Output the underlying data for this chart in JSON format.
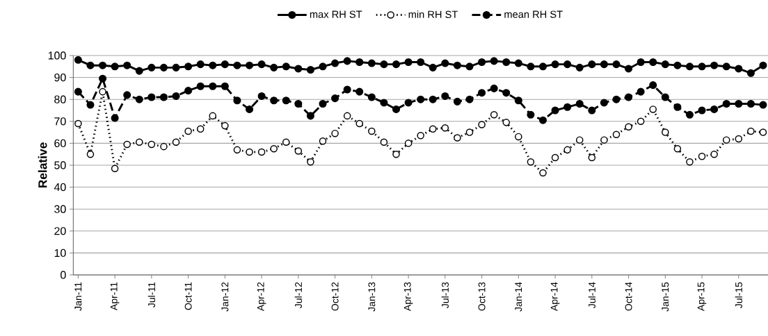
{
  "chart_data": {
    "type": "line",
    "ylabel": "Relative",
    "categories": [
      "Jan-11",
      null,
      null,
      "Apr-11",
      null,
      null,
      "Jul-11",
      null,
      null,
      "Oct-11",
      null,
      null,
      "Jan-12",
      null,
      null,
      "Apr-12",
      null,
      null,
      "Jul-12",
      null,
      null,
      "Oct-12",
      null,
      null,
      "Jan-13",
      null,
      null,
      "Apr-13",
      null,
      null,
      "Jul-13",
      null,
      null,
      "Oct-13",
      null,
      null,
      "Jan-14",
      null,
      null,
      "Apr-14",
      null,
      null,
      "Jul-14",
      null,
      null,
      "Oct-14",
      null,
      null,
      "Jan-15",
      null,
      null,
      "Apr-15",
      null,
      null,
      "Jul-15",
      null,
      null
    ],
    "series": [
      {
        "name": "max RH ST",
        "color": "#000000",
        "line_style": "solid",
        "marker": "circle",
        "values": [
          98,
          95.5,
          95.5,
          95,
          95.5,
          93,
          94.5,
          94.5,
          94.5,
          95,
          96,
          95.5,
          96,
          95.5,
          95.5,
          96,
          94.5,
          95,
          94,
          93.5,
          95,
          96.5,
          97.5,
          97,
          96.5,
          96,
          96,
          97,
          97,
          94.5,
          96.5,
          95.5,
          95,
          97,
          97.5,
          97,
          96.5,
          95,
          95,
          96,
          96,
          94.5,
          96,
          96,
          96,
          94,
          97,
          97,
          96,
          95.5,
          95,
          95,
          95.5,
          95,
          94,
          92,
          95.5
        ]
      },
      {
        "name": "min RH ST",
        "color": "#000000",
        "line_style": "dotted",
        "marker": "circle",
        "values": [
          69,
          55,
          83.5,
          48.5,
          59.5,
          60.5,
          59.5,
          58.5,
          60.5,
          65.5,
          66.5,
          72.5,
          68,
          57,
          56,
          56,
          57.5,
          60.5,
          56.5,
          51.5,
          61,
          64.5,
          72.5,
          69,
          65.5,
          60.5,
          55,
          60,
          63.5,
          66.5,
          67,
          62.5,
          65,
          68.5,
          73,
          69.5,
          63,
          51.5,
          46.5,
          53.5,
          57,
          61.5,
          53.5,
          61.5,
          64,
          67.5,
          70,
          75.5,
          65,
          57.5,
          51.5,
          54,
          55,
          61.5,
          62,
          65.5,
          65
        ]
      },
      {
        "name": "mean RH ST",
        "color": "#000000",
        "line_style": "dashed",
        "marker": "circle",
        "values": [
          83.5,
          77.5,
          89.5,
          71.5,
          82,
          80,
          81,
          81,
          81.5,
          84,
          86,
          86,
          86,
          79.5,
          75.5,
          81.5,
          79.5,
          79.5,
          78,
          72.5,
          78,
          80.5,
          84.5,
          83.5,
          81,
          78.5,
          75.5,
          78.5,
          80,
          80,
          81.5,
          79,
          80,
          83,
          85,
          83,
          79.5,
          73,
          70.5,
          75,
          76.5,
          78,
          75,
          78.5,
          80,
          81,
          83.5,
          86.5,
          81,
          76.5,
          73,
          75,
          75.5,
          78,
          78,
          78,
          77.5
        ]
      }
    ],
    "ylim": [
      0,
      100
    ],
    "yticks": [
      0,
      10,
      20,
      30,
      40,
      50,
      60,
      70,
      80,
      90,
      100
    ],
    "grid": "y",
    "legend": "top"
  }
}
